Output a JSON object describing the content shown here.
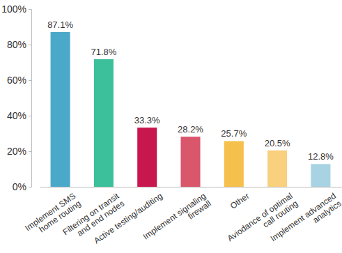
{
  "chart_data": {
    "type": "bar",
    "categories": [
      "Implement SMS\nhome routing",
      "Filtering on transit\nand end nodes",
      "Active testing/auditing",
      "Implement signaling\nfirewall",
      "Other",
      "Aviodance of optimal\ncall routing",
      "Implement advanced\nanalytics"
    ],
    "values": [
      87.1,
      71.8,
      33.3,
      28.2,
      25.7,
      20.5,
      12.8
    ],
    "value_labels": [
      "87.1%",
      "71.8%",
      "33.3%",
      "28.2%",
      "25.7%",
      "20.5%",
      "12.8%"
    ],
    "colors": [
      "#4aa9c9",
      "#3cbf9b",
      "#c8174f",
      "#d9566b",
      "#f5c04c",
      "#f8d07e",
      "#a8d3e2"
    ],
    "ylim": [
      0,
      100
    ],
    "yticks": [
      {
        "value": 0,
        "label": "0%"
      },
      {
        "value": 20,
        "label": "20%"
      },
      {
        "value": 40,
        "label": "40%"
      },
      {
        "value": 60,
        "label": "60%"
      },
      {
        "value": 80,
        "label": "80%"
      },
      {
        "value": 100,
        "label": "100%"
      }
    ],
    "grid": false,
    "data_labels": true
  }
}
